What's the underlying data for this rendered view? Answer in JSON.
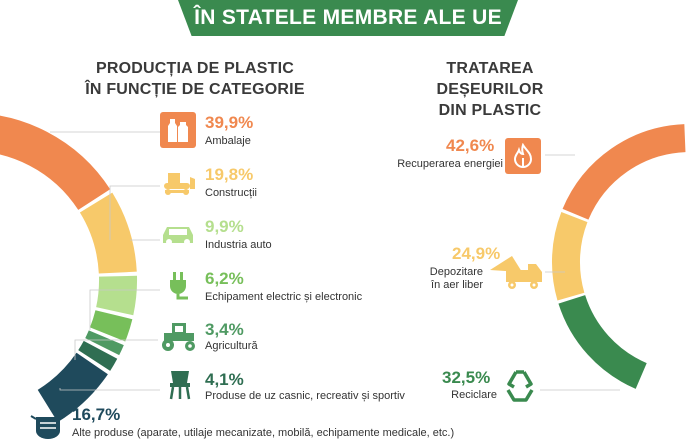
{
  "header": {
    "banner": "ÎN STATELE MEMBRE ALE UE"
  },
  "colors": {
    "banner": "#3a8a4f",
    "orange": "#f0884f",
    "yellow": "#f7c96a",
    "light_green": "#b5df8e",
    "green": "#77bf5a",
    "mid_green": "#4f9a63",
    "dark_green": "#2f6e52",
    "teal": "#355f66",
    "navy": "#1f4a5c"
  },
  "chart_data": [
    {
      "type": "pie",
      "title": "PRODUCȚIA DE PLASTIC ÎN FUNCȚIE DE CATEGORIE",
      "title_lines": [
        "PRODUCȚIA DE PLASTIC",
        "ÎN FUNCȚIE DE CATEGORIE"
      ],
      "slices": [
        {
          "label": "Ambalaje",
          "value": 39.9,
          "display": "39,9%",
          "color": "#f0884f",
          "icon": "bottles-icon"
        },
        {
          "label": "Construcții",
          "value": 19.8,
          "display": "19,8%",
          "color": "#f7c96a",
          "icon": "bulldozer-icon"
        },
        {
          "label": "Industria auto",
          "value": 9.9,
          "display": "9,9%",
          "color": "#b5df8e",
          "icon": "car-icon"
        },
        {
          "label": "Echipament electric și electronic",
          "value": 6.2,
          "display": "6,2%",
          "color": "#77bf5a",
          "icon": "plug-icon"
        },
        {
          "label": "Agricultură",
          "value": 3.4,
          "display": "3,4%",
          "color": "#4f9a63",
          "icon": "tractor-icon"
        },
        {
          "label": "Produse de uz casnic, recreativ și sportiv",
          "value": 4.1,
          "display": "4,1%",
          "color": "#2f6e52",
          "icon": "chair-icon"
        },
        {
          "label": "Alte produse (aparate, utilaje mecanizate, mobilă, echipamente medicale, etc.)",
          "value": 16.7,
          "display": "16,7%",
          "color": "#1f4a5c",
          "icon": "mask-icon"
        }
      ]
    },
    {
      "type": "pie",
      "title": "TRATAREA DEȘEURILOR DIN PLASTIC",
      "title_lines": [
        "TRATAREA DEȘEURILOR",
        "DIN PLASTIC"
      ],
      "slices": [
        {
          "label": "Recuperarea energiei",
          "value": 42.6,
          "display": "42,6%",
          "color": "#f0884f",
          "icon": "flame-icon"
        },
        {
          "label": "Depozitare în aer liber",
          "label_lines": [
            "Depozitare",
            "în aer liber"
          ],
          "value": 24.9,
          "display": "24,9%",
          "color": "#f7c96a",
          "icon": "dump-truck-icon"
        },
        {
          "label": "Reciclare",
          "value": 32.5,
          "display": "32,5%",
          "color": "#3a8a4f",
          "icon": "recycle-icon"
        }
      ]
    }
  ]
}
